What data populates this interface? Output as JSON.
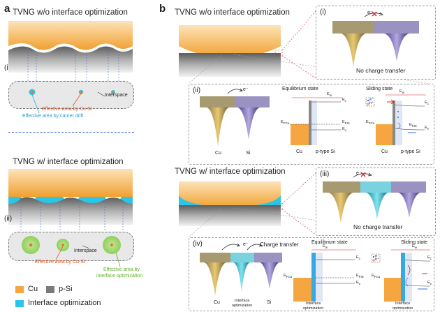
{
  "panel_a": {
    "letter": "a",
    "title_i": "TVNG w/o interface optimization",
    "title_ii": "TVNG w/ interface optimization",
    "label_i": "(i)",
    "label_ii": "(ii)",
    "interspace_1": "Interspace",
    "interspace_2": "Interspace",
    "eff_cusi_1": "Effective area by Cu-Si",
    "eff_drift": "Effective area by carrier drift",
    "eff_cusi_2": "Effective area by Cu-Si",
    "eff_opt_line1": "Effective area by",
    "eff_opt_line2": "interface optimization"
  },
  "legend": {
    "cu": "Cu",
    "psi": "p-Si",
    "opt": "Interface optimization",
    "colors": {
      "cu": "#f5a640",
      "psi": "#7a7a7a",
      "opt": "#29c6e8"
    }
  },
  "panel_b": {
    "letter": "b",
    "title_top": "TVNG w/o interface optimization",
    "title_bottom": "TVNG w/ interface optimization",
    "i": {
      "label": "(i)",
      "electron": "e⁻",
      "caption": "No charge transfer"
    },
    "ii": {
      "label": "(ii)",
      "electron": "e⁻",
      "cu": "Cu",
      "si": "Si",
      "equilibrium": "Equilibrium state",
      "sliding": "Sliding state",
      "ew": "E",
      "ew_sub": "w",
      "ec": "E",
      "ec_sub": "c",
      "ev": "E",
      "ev_sub": "v",
      "efsi": "E",
      "efsi_sub": "FSi",
      "efcu": "E",
      "efcu_sub": "FCu",
      "bottom_cu_1": "Cu",
      "bottom_si_1": "p-type Si",
      "bottom_cu_2": "Cu",
      "bottom_si_2": "p-type Si",
      "carrier_e": "e⁻",
      "carrier_h": "h⁺"
    },
    "iii": {
      "label": "(iii)",
      "electron": "e⁻",
      "caption": "No charge transfer"
    },
    "iv": {
      "label": "(iv)",
      "electron": "e⁻",
      "charge_transfer": "Charge transfer",
      "cu": "Cu",
      "opt_line1": "Interface",
      "opt_line2": "optimization",
      "si": "Si",
      "equilibrium": "Equilibrium state",
      "sliding": "Sliding state",
      "bottom_1_line1": "Interface",
      "bottom_1_line2": "optimization",
      "bottom_2_line1": "Interface",
      "bottom_2_line2": "optimization",
      "carrier_e": "e⁻",
      "carrier_h": "h⁺"
    }
  }
}
